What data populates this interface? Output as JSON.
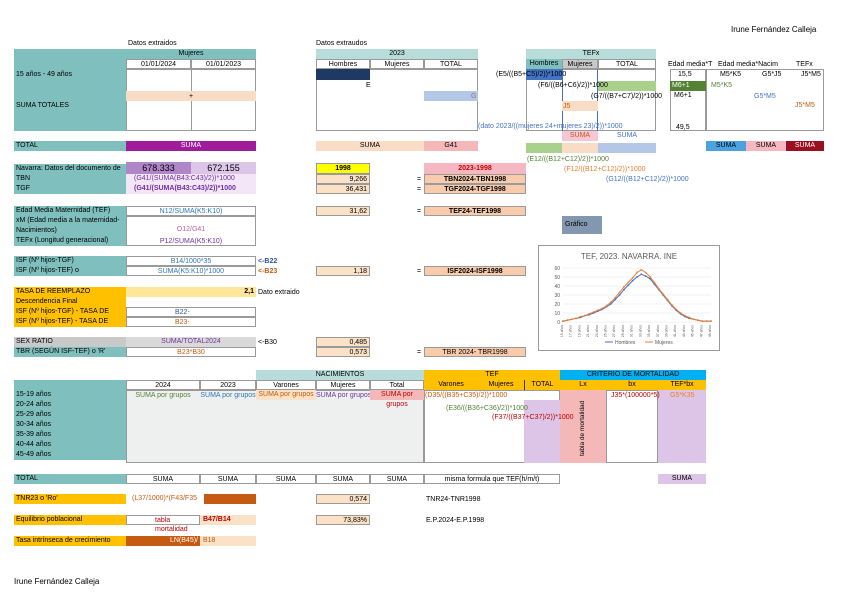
{
  "author": "Irune Fernández Calleja",
  "top": {
    "datos_extraidos_1": "Datos extraidos",
    "mujeres": "Mujeres",
    "date_2024": "01/01/2024",
    "date_2023": "01/01/2023",
    "datos_extraidos_2": "Datos extraudos",
    "year_2023": "2023",
    "hombres": "Hombres",
    "mujeres2": "Mujeres",
    "total": "TOTAL",
    "tefx": "TEFx",
    "tef_hombres": "Hombres",
    "tef_mujeres": "Mujeres",
    "tef_total": "TOTAL",
    "edad_media_1": "Edad media*T",
    "edad_media_2": "Edad media*Nacim",
    "tefx_col": "TEFx"
  },
  "rows_top": {
    "r1": "15 años - 49 años",
    "suma_totales": "SUMA TOTALES",
    "total": "TOTAL",
    "plus": "+",
    "e_letter": "E",
    "g_letter": "G",
    "f1": "(E5/((B5+C5)/2))*1000",
    "f2": "(F6/((B6+C6)/2))*1000",
    "f3": "(G7/((B7+C7)/2))*1000",
    "f4": "(dato 2023/((mujeres 24+mujeres 23)/2))*1000",
    "j5": "J5",
    "val_15_5": "15,5",
    "m5k5": "M5*K5",
    "g5j5": "G5*J5",
    "j5m5_a": "J5*M5",
    "m6_1": "M6+1",
    "m6_1b": "M6+1",
    "m5k5_b": "M5*K5",
    "g5m5": "G5*M5",
    "j5m5_b": "J5*M5",
    "val_49_5": "49,5",
    "suma_1": "SUMA",
    "suma_2": "SUMA",
    "g41": "G41",
    "suma_tef1": "SUMA",
    "suma_tef2": "SUMA",
    "suma_r1": "SUMA",
    "suma_r2": "SUMA",
    "suma_r3": "SUMA",
    "f_e12": "(E12/((B12+C12)/2))*1000",
    "f_f12": "(F12/((B12+C12)/2))*1000",
    "f_g12": "(G12/((B12+C12)/2))*1000"
  },
  "indicators": {
    "navarra_label": "Navarra: Datos del documento de",
    "navarra_v1": "678.333",
    "navarra_v2": "672.155",
    "v1998": "1998",
    "r_2023_1998": "2023-1998",
    "tbn_label": "TBN",
    "tbn_formula": "(G41/(SUMA(B43:C43)/2))*1000",
    "tbn_value": "9,266",
    "tbn_eq": "=",
    "tbn_result": "TBN2024-TBN1998",
    "tgf_label": "TGF",
    "tgf_formula": "(G41/(SUMA(B43:C43)/2))*1000",
    "tgf_value": "36,431",
    "tgf_eq": "=",
    "tgf_result": "TGF2024-TGF1998",
    "tef_label": "Edad Media Maternidad (TEF)",
    "tef_formula": "N12/SUMA(K5:K10)",
    "tef_value": "31,62",
    "tef_eq": "=",
    "tef_result": "TEF24-TEF1998",
    "xm_label": "xM (Edad media a la maternidad-",
    "nac_label": "Nacimientos)",
    "xm_formula": "O12/G41",
    "tefx_label": "TEFx (Longitud generacional)",
    "tefx_formula": "P12/SUMA(K5:K10)",
    "grafico": "Gráfico",
    "isf_tgf_label": "ISF (Nº hijos-TGF)",
    "isf_tgf_formula": "B14/1000*35",
    "isf_tgf_arrow": "<-B22",
    "isf_tef_label": "ISF (Nº hijos-TEF) o 'Descendencia",
    "isf_tef_formula": "SUMA(K5:K10)*1000",
    "isf_tef_arrow": "<-B23",
    "isf_tef_value": "1,18",
    "isf_tef_eq": "=",
    "isf_tef_result": "ISF2024-ISF1998",
    "tasa_label": "TASA DE REEMPLAZO",
    "tasa_value": "2,1",
    "tasa_note": "Dato extraido",
    "desc_label": "Descendencia Final (FECUNDIDAD DE REEMPLAZO)",
    "isf_tgf_tasa": "ISF (Nº hijos-TGF) - TASA DE REEMPLAZO",
    "isf_tgf_tasa_f": "B22-",
    "isf_tef_tasa": "ISF (Nº hijos-TEF) - TASA DE REEMPLAZO",
    "isf_tef_tasa_f": "B23-",
    "sex_label": "SEX RATIO",
    "sex_formula": "SUMA/TOTAL2024",
    "sex_arrow": "<-B30",
    "sex_value": "0,485",
    "tbr_label": "TBR (SEGÚN ISF-TEF) o 'R'",
    "tbr_formula": "B23*B30",
    "tbr_value": "0,573",
    "tbr_eq": "=",
    "tbr_result": "TBR 2024- TBR1998"
  },
  "chart_data": {
    "type": "line",
    "title": "TEF, 2023. NAVARRA. INE",
    "x": [
      "15 años",
      "16 años",
      "17 años",
      "18 años",
      "19 años",
      "20 años",
      "21 años",
      "22 años",
      "23 años",
      "24 años",
      "25 años",
      "26 años",
      "27 años",
      "28 años",
      "29 años",
      "30 años",
      "31 años",
      "32 años",
      "33 años",
      "34 años",
      "35 años",
      "36 años",
      "37 años",
      "38 años",
      "39 años",
      "40 años",
      "41 años",
      "42 años",
      "43 años",
      "44 años",
      "45 años",
      "46 años",
      "47 años",
      "48 años",
      "49 años"
    ],
    "series": [
      {
        "name": "Hombres",
        "color": "#4472c4",
        "values": [
          1,
          2,
          3,
          4,
          5,
          7,
          8,
          10,
          12,
          14,
          17,
          20,
          25,
          30,
          36,
          41,
          46,
          50,
          53,
          51,
          48,
          42,
          36,
          30,
          24,
          18,
          13,
          9,
          6,
          4,
          3,
          2,
          1,
          1,
          1
        ]
      },
      {
        "name": "Mujeres",
        "color": "#ed7d31",
        "values": [
          1,
          2,
          3,
          4,
          6,
          7,
          9,
          11,
          13,
          15,
          18,
          22,
          27,
          33,
          39,
          44,
          49,
          55,
          58,
          55,
          50,
          44,
          37,
          31,
          25,
          19,
          14,
          10,
          7,
          5,
          3,
          2,
          1,
          1,
          1
        ]
      }
    ],
    "ylim": [
      0,
      60
    ],
    "yticks": [
      0,
      10,
      20,
      30,
      40,
      50,
      60
    ],
    "legend": "bottom"
  },
  "table": {
    "nacimientos": "NACIMIENTOS",
    "tef": "TEF",
    "criterio": "CRITERIO DE MORTALIDAD",
    "h2024": "2024",
    "h2023": "2023",
    "varones": "Varones",
    "mujeres": "Mujeres",
    "total": "Total",
    "tef_varones": "Varones",
    "tef_mujeres": "Mujeres",
    "tef_total": "TOTAL",
    "lx": "Lx",
    "bx": "bx",
    "tefbx": "TEF*bx",
    "ages": [
      "15-19 años",
      "20-24 años",
      "25-29 años",
      "30-34 años",
      "35-39 años",
      "40-44 años",
      "45-49 años"
    ],
    "suma_grupos_1": "SUMA por grupos",
    "suma_grupos_2": "SUMA por grupos",
    "suma_grupos_3": "SUMA por grupos",
    "suma_grupos_4": "SUMA por grupos",
    "suma_grupos_5": "SUMA por grupos",
    "f_d35": "(D35/((B35+C35)/2))*1000",
    "f_e36": "(E36/((B36+C36)/2))*1000",
    "f_f37": "(F37/((B37+C37)/2))*1000",
    "j35": "J35*(100000*5)",
    "g5": "G5*K35",
    "tabla_mortalidad": "tabla de mortalidad",
    "total_label": "TOTAL",
    "suma_t1": "SUMA",
    "suma_t2": "SUMA",
    "suma_t3": "SUMA",
    "suma_t4": "SUMA",
    "suma_t5": "SUMA",
    "misma": "misma formula que TEF(h/m/t)",
    "suma_t6": "SUMA"
  },
  "bottom": {
    "tnr_label": "TNR23 o 'Ro'",
    "tnr_formula": "(L37/1000)*(F43/F35",
    "tnr_value": "0,574",
    "tnr_result": "TNR24-TNR1998",
    "equilibrio_label": "Equilibrio poblacional",
    "equilibrio_formula": "tabla mortalidad",
    "equilibrio_b": "B47/B14",
    "equilibrio_value": "73,83%",
    "equilibrio_result": "E.P.2024-E.P.1998",
    "tasa_label": "Tasa intrínseca de crecimiento natural",
    "tasa_formula": "LN(B45)/",
    "tasa_b": "B18"
  }
}
